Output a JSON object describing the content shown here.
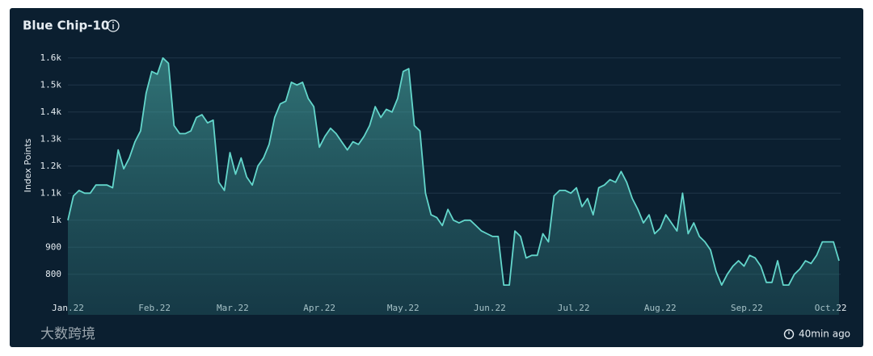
{
  "chart_data": {
    "type": "area",
    "title": "Blue Chip-10",
    "y_label": "Index Points",
    "footer": "40min ago",
    "watermark": "大数跨境",
    "color": "#63d6cb",
    "grid": true,
    "values": [
      1000,
      1090,
      1110,
      1100,
      1100,
      1130,
      1130,
      1130,
      1120,
      1260,
      1190,
      1230,
      1290,
      1330,
      1470,
      1550,
      1540,
      1600,
      1580,
      1350,
      1320,
      1320,
      1330,
      1380,
      1390,
      1360,
      1370,
      1140,
      1110,
      1250,
      1170,
      1230,
      1160,
      1130,
      1200,
      1230,
      1280,
      1380,
      1430,
      1440,
      1510,
      1500,
      1510,
      1450,
      1420,
      1270,
      1310,
      1340,
      1320,
      1290,
      1260,
      1290,
      1280,
      1310,
      1350,
      1420,
      1380,
      1410,
      1400,
      1450,
      1550,
      1560,
      1350,
      1330,
      1100,
      1020,
      1010,
      980,
      1040,
      1000,
      990,
      1000,
      1000,
      980,
      960,
      950,
      940,
      940,
      760,
      760,
      960,
      940,
      860,
      870,
      870,
      950,
      920,
      1090,
      1110,
      1110,
      1100,
      1120,
      1050,
      1080,
      1020,
      1120,
      1130,
      1150,
      1140,
      1180,
      1140,
      1080,
      1040,
      990,
      1020,
      950,
      970,
      1020,
      990,
      960,
      1100,
      950,
      990,
      940,
      920,
      890,
      810,
      760,
      800,
      830,
      850,
      830,
      870,
      860,
      830,
      770,
      770,
      850,
      760,
      760,
      800,
      820,
      850,
      840,
      870,
      920,
      920,
      920,
      850
    ],
    "xlim": [
      0,
      138
    ],
    "xticks": [
      {
        "value": 0,
        "label": "Jan.22"
      },
      {
        "value": 15.5,
        "label": "Feb.22"
      },
      {
        "value": 29.5,
        "label": "Mar.22"
      },
      {
        "value": 45,
        "label": "Apr.22"
      },
      {
        "value": 60,
        "label": "May.22"
      },
      {
        "value": 75.5,
        "label": "Jun.22"
      },
      {
        "value": 90.5,
        "label": "Jul.22"
      },
      {
        "value": 106,
        "label": "Aug.22"
      },
      {
        "value": 121.5,
        "label": "Sep.22"
      },
      {
        "value": 136.5,
        "label": "Oct.22"
      }
    ],
    "ylim": [
      650,
      1650
    ],
    "yticks": [
      800,
      900,
      {
        "value": 1000,
        "label": "1k"
      },
      {
        "value": 1100,
        "label": "1.1k"
      },
      {
        "value": 1200,
        "label": "1.2k"
      },
      {
        "value": 1300,
        "label": "1.3k"
      },
      {
        "value": 1400,
        "label": "1.4k"
      },
      {
        "value": 1500,
        "label": "1.5k"
      },
      {
        "value": 1600,
        "label": "1.6k"
      }
    ]
  }
}
